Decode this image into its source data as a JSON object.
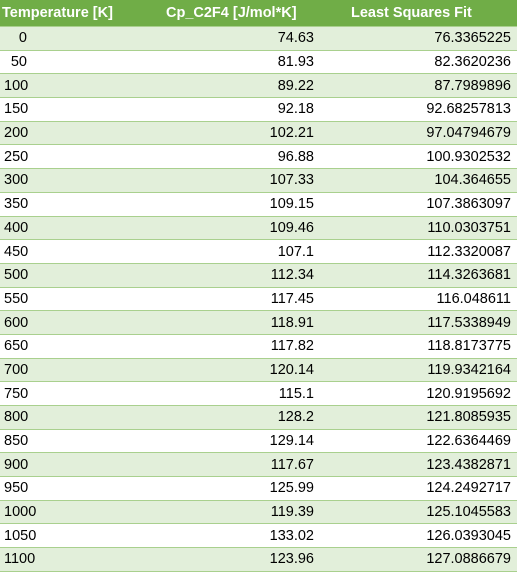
{
  "table": {
    "headers": [
      "Temperature [K]",
      "Cp_C2F4  [J/mol*K]",
      "Least Squares Fit"
    ],
    "rows": [
      [
        "0",
        "74.63",
        "76.3365225"
      ],
      [
        "50",
        "81.93",
        "82.3620236"
      ],
      [
        "100",
        "89.22",
        "87.7989896"
      ],
      [
        "150",
        "92.18",
        "92.68257813"
      ],
      [
        "200",
        "102.21",
        "97.04794679"
      ],
      [
        "250",
        "96.88",
        "100.9302532"
      ],
      [
        "300",
        "107.33",
        "104.364655"
      ],
      [
        "350",
        "109.15",
        "107.3863097"
      ],
      [
        "400",
        "109.46",
        "110.0303751"
      ],
      [
        "450",
        "107.1",
        "112.3320087"
      ],
      [
        "500",
        "112.34",
        "114.3263681"
      ],
      [
        "550",
        "117.45",
        "116.048611"
      ],
      [
        "600",
        "118.91",
        "117.5338949"
      ],
      [
        "650",
        "117.82",
        "118.8173775"
      ],
      [
        "700",
        "120.14",
        "119.9342164"
      ],
      [
        "750",
        "115.1",
        "120.9195692"
      ],
      [
        "800",
        "128.2",
        "121.8085935"
      ],
      [
        "850",
        "129.14",
        "122.6364469"
      ],
      [
        "900",
        "117.67",
        "123.4382871"
      ],
      [
        "950",
        "125.99",
        "124.2492717"
      ],
      [
        "1000",
        "119.39",
        "125.1045583"
      ],
      [
        "1050",
        "133.02",
        "126.0393045"
      ],
      [
        "1100",
        "123.96",
        "127.0886679"
      ]
    ]
  },
  "colors": {
    "header_background": "#70ad47",
    "header_text": "#ffffff",
    "band_row": "#e2efda",
    "plain_row": "#ffffff",
    "row_border": "#a9d08e"
  }
}
